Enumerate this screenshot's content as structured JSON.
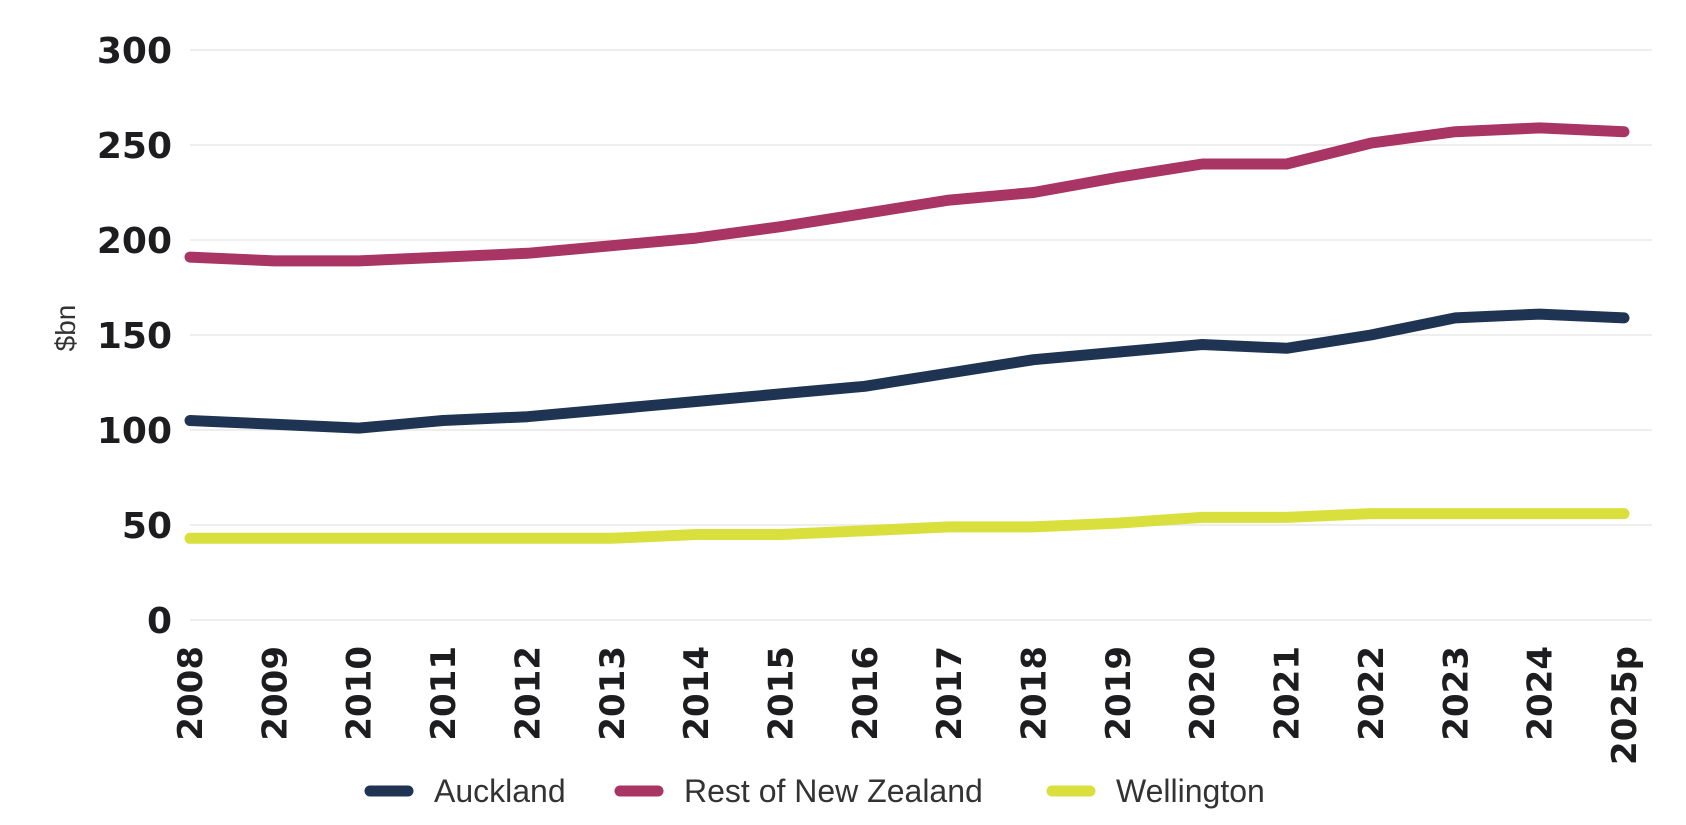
{
  "chart_data": {
    "type": "line",
    "title": "",
    "xlabel": "",
    "ylabel": "$bn",
    "ylim": [
      0,
      300
    ],
    "yticks": [
      "0",
      "50",
      "100",
      "150",
      "200",
      "250",
      "300"
    ],
    "categories": [
      "2008",
      "2009",
      "2010",
      "2011",
      "2012",
      "2013",
      "2014",
      "2015",
      "2016",
      "2017",
      "2018",
      "2019",
      "2020",
      "2021",
      "2022",
      "2023",
      "2024",
      "2025p"
    ],
    "grid": true,
    "legend_position": "bottom",
    "series": [
      {
        "name": "Auckland",
        "color": "#1e3452",
        "values": [
          105,
          103,
          101,
          105,
          107,
          111,
          115,
          119,
          123,
          130,
          137,
          141,
          145,
          143,
          150,
          159,
          161,
          159
        ]
      },
      {
        "name": "Rest of New Zealand",
        "color": "#a83563",
        "values": [
          191,
          189,
          189,
          191,
          193,
          197,
          201,
          207,
          214,
          221,
          225,
          233,
          240,
          240,
          251,
          257,
          259,
          257
        ]
      },
      {
        "name": "Wellington",
        "color": "#d9e03d",
        "values": [
          43,
          43,
          43,
          43,
          43,
          43,
          45,
          45,
          47,
          49,
          49,
          51,
          54,
          54,
          56,
          56,
          56,
          56
        ]
      }
    ]
  }
}
